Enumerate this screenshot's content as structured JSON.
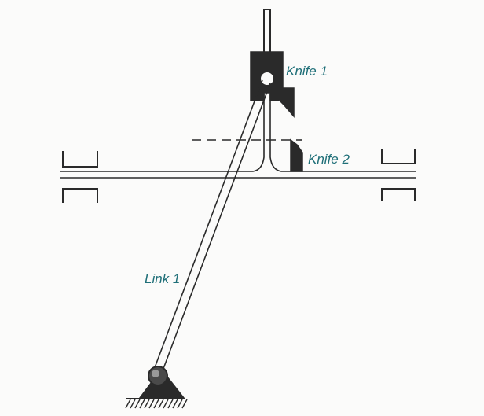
{
  "labels": {
    "knife1": "Knife 1",
    "knife2": "Knife 2",
    "link1": "Link 1"
  },
  "colors": {
    "label": "#1f6f78",
    "line": "#2a2a2a",
    "background": "#fbfbfa"
  }
}
